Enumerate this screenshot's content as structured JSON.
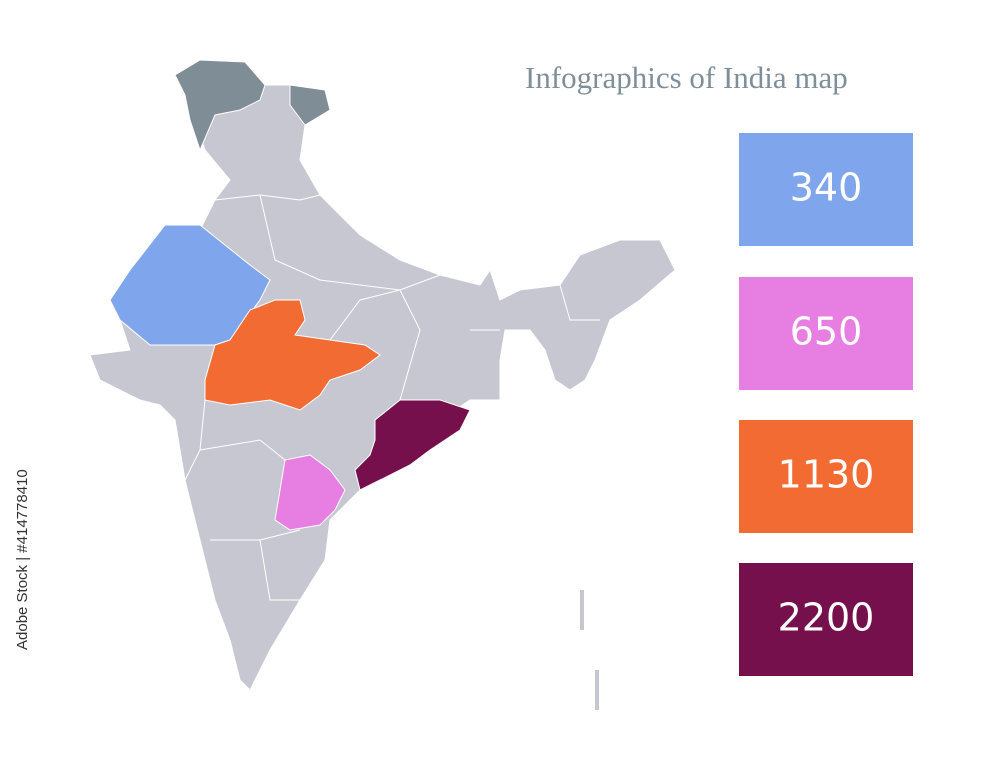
{
  "title": "Infographics of India map",
  "boxes": [
    {
      "value": 340,
      "color": "#7fa6ec"
    },
    {
      "value": 650,
      "color": "#e77fe3"
    },
    {
      "value": 1130,
      "color": "#f26b33"
    },
    {
      "value": 2200,
      "color": "#76104d"
    }
  ],
  "watermark": "Adobe Stock | #414778410"
}
